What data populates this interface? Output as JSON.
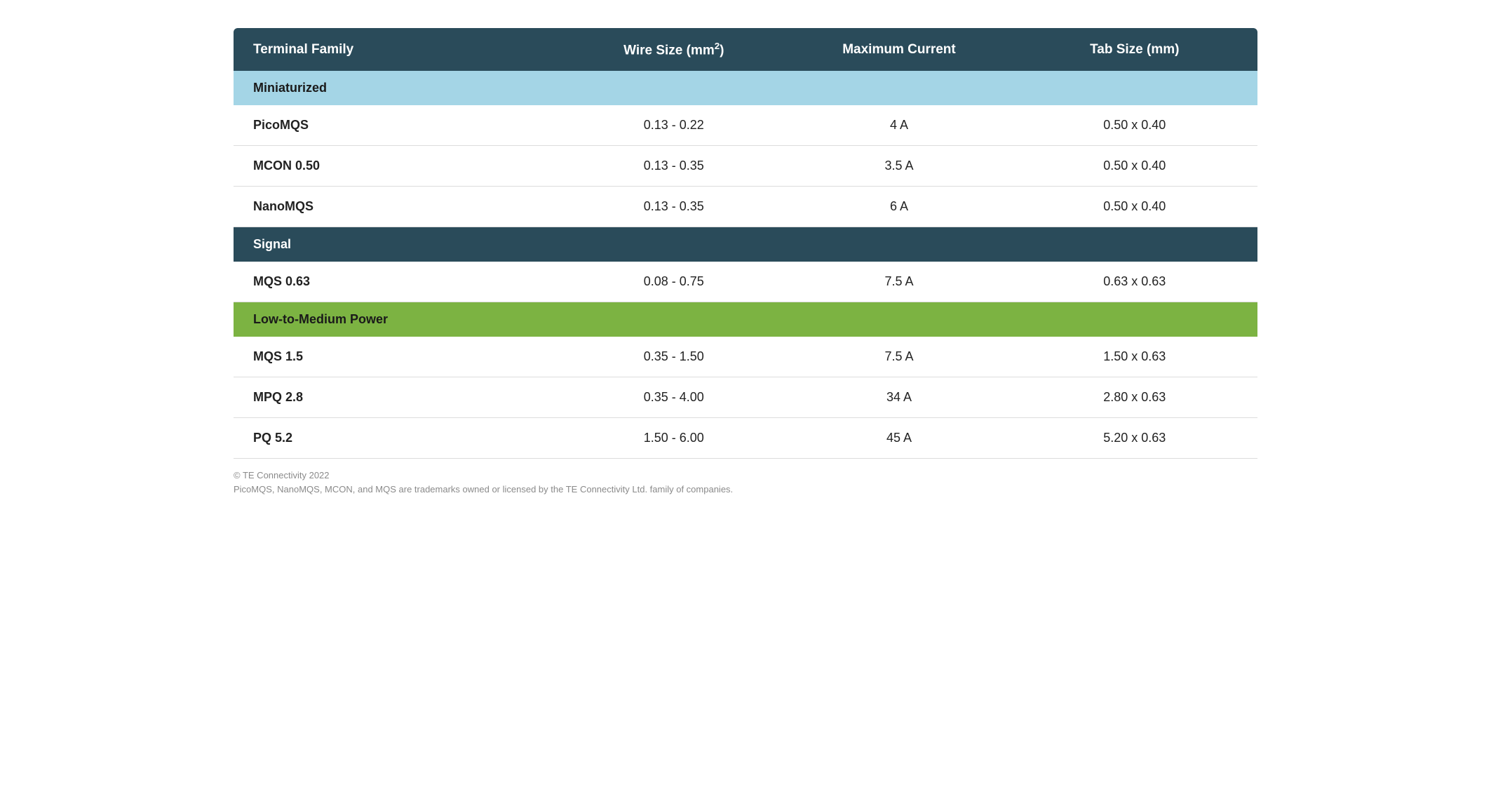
{
  "table": {
    "columns": [
      {
        "label": "Terminal Family",
        "has_sup": false
      },
      {
        "label_pre": "Wire Size (mm",
        "label_sup": "2",
        "label_post": ")",
        "has_sup": true
      },
      {
        "label": "Maximum Current",
        "has_sup": false
      },
      {
        "label": "Tab Size (mm)",
        "has_sup": false
      }
    ],
    "column_widths": [
      "32%",
      "22%",
      "22%",
      "24%"
    ],
    "header_bg": "#2a4b5a",
    "header_fg": "#ffffff",
    "row_border_color": "#dcdcdc",
    "sections": [
      {
        "title": "Miniaturized",
        "bg": "#a4d5e6",
        "fg": "#1a1a1a",
        "rows": [
          {
            "family": "PicoMQS",
            "wire": "0.13 - 0.22",
            "current": "4 A",
            "tab": "0.50 x 0.40"
          },
          {
            "family": "MCON 0.50",
            "wire": "0.13 - 0.35",
            "current": "3.5 A",
            "tab": "0.50 x 0.40"
          },
          {
            "family": "NanoMQS",
            "wire": "0.13 - 0.35",
            "current": "6 A",
            "tab": "0.50 x 0.40"
          }
        ]
      },
      {
        "title": "Signal",
        "bg": "#2a4b5a",
        "fg": "#ffffff",
        "rows": [
          {
            "family": "MQS 0.63",
            "wire": "0.08 - 0.75",
            "current": "7.5 A",
            "tab": "0.63 x 0.63"
          }
        ]
      },
      {
        "title": "Low-to-Medium Power",
        "bg": "#7cb342",
        "fg": "#1a1a1a",
        "rows": [
          {
            "family": "MQS 1.5",
            "wire": "0.35 - 1.50",
            "current": "7.5 A",
            "tab": "1.50 x 0.63"
          },
          {
            "family": "MPQ 2.8",
            "wire": "0.35 - 4.00",
            "current": "34 A",
            "tab": "2.80 x 0.63"
          },
          {
            "family": "PQ 5.2",
            "wire": "1.50 - 6.00",
            "current": "45 A",
            "tab": "5.20 x 0.63"
          }
        ]
      }
    ]
  },
  "footer": {
    "line1": "© TE Connectivity 2022",
    "line2": "PicoMQS, NanoMQS, MCON, and MQS are trademarks owned or licensed by the TE Connectivity Ltd. family of companies."
  }
}
